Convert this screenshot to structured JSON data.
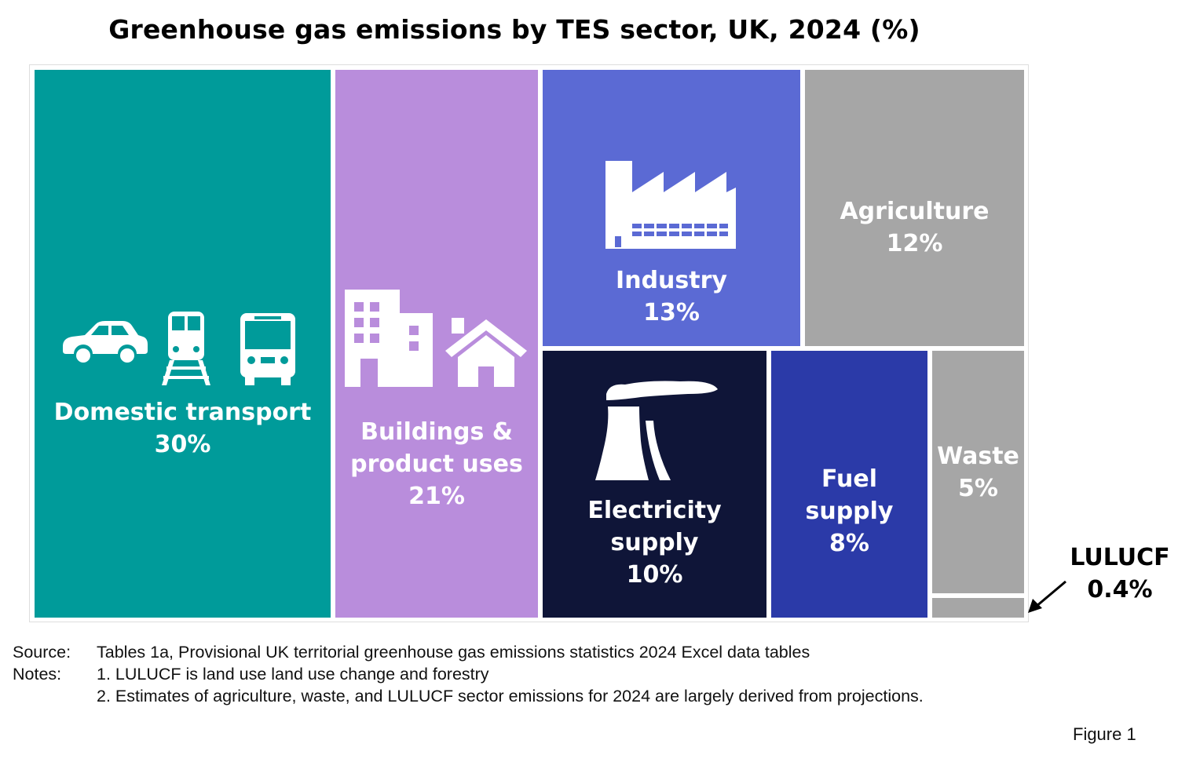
{
  "chart_data": {
    "type": "treemap",
    "title": "Greenhouse gas emissions by TES sector, UK, 2024 (%)",
    "unit": "%",
    "sectors": [
      {
        "name": "Domestic transport",
        "lines": [
          "Domestic transport"
        ],
        "value": 30,
        "label": "30%",
        "color": "#009b9a",
        "text_color": "#ffffff",
        "icon": "transport-icons"
      },
      {
        "name": "Buildings & product uses",
        "lines": [
          "Buildings &",
          "product uses"
        ],
        "value": 21,
        "label": "21%",
        "color": "#b98ddc",
        "text_color": "#ffffff",
        "icon": "buildings-icons"
      },
      {
        "name": "Industry",
        "lines": [
          "Industry"
        ],
        "value": 13,
        "label": "13%",
        "color": "#5b6ad4",
        "text_color": "#ffffff",
        "icon": "factory-icon"
      },
      {
        "name": "Agriculture",
        "lines": [
          "Agriculture"
        ],
        "value": 12,
        "label": "12%",
        "color": "#a6a6a6",
        "text_color": "#ffffff",
        "icon": ""
      },
      {
        "name": "Electricity supply",
        "lines": [
          "Electricity",
          "supply"
        ],
        "value": 10,
        "label": "10%",
        "color": "#0f1538",
        "text_color": "#ffffff",
        "icon": "power-station-icon"
      },
      {
        "name": "Fuel supply",
        "lines": [
          "Fuel",
          "supply"
        ],
        "value": 8,
        "label": "8%",
        "color": "#2b3aa8",
        "text_color": "#ffffff",
        "icon": ""
      },
      {
        "name": "Waste",
        "lines": [
          "Waste"
        ],
        "value": 5,
        "label": "5%",
        "color": "#a6a6a6",
        "text_color": "#ffffff",
        "icon": ""
      },
      {
        "name": "LULUCF",
        "lines": [
          "LULUCF"
        ],
        "value": 0.4,
        "label": "0.4%",
        "color": "#a6a6a6",
        "text_color": "#000000",
        "icon": ""
      }
    ]
  },
  "callout": {
    "name": "LULUCF",
    "value": "0.4%"
  },
  "notes": {
    "source_label": "Source:",
    "source_text": "Tables 1a, Provisional UK territorial greenhouse gas emissions statistics 2024 Excel data tables",
    "notes_label": "Notes:",
    "note1": "1. LULUCF is land use land use change and forestry",
    "note2": "2. Estimates of agriculture, waste, and LULUCF sector emissions for 2024 are largely derived from projections."
  },
  "figure_label": "Figure 1"
}
